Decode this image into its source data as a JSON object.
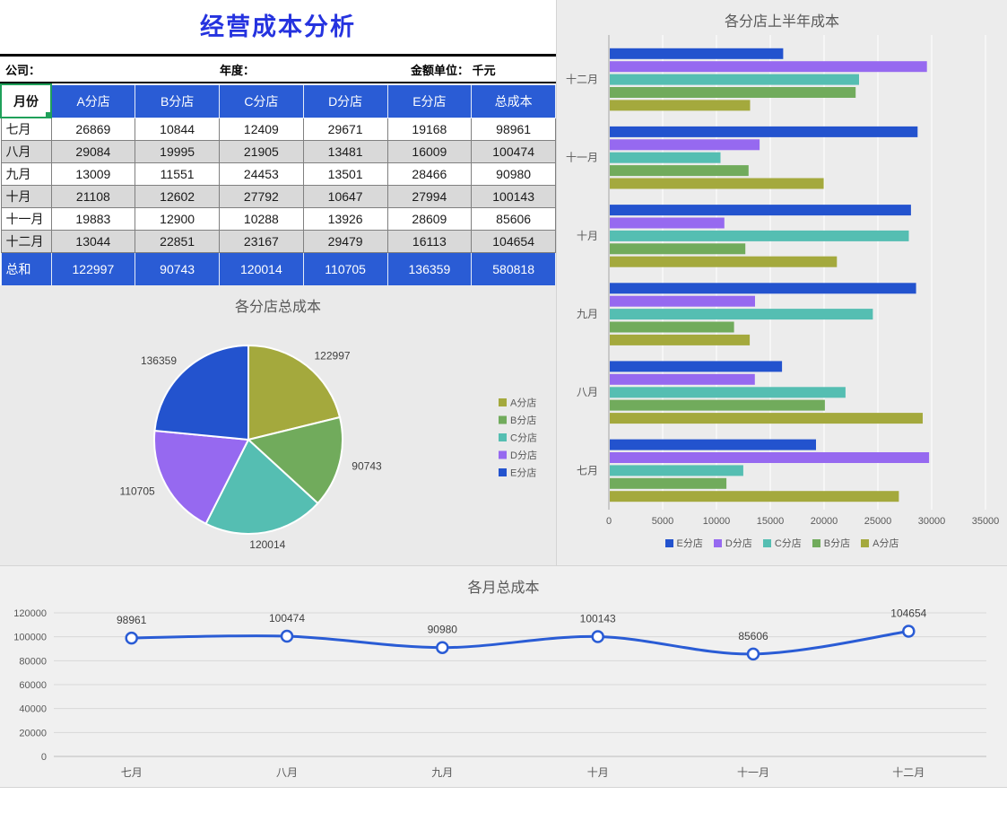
{
  "header": {
    "title": "经营成本分析",
    "company_label": "公司：",
    "year_label": "年度：",
    "unit_label": "金额单位： 千元"
  },
  "table": {
    "columns": [
      "月份",
      "A分店",
      "B分店",
      "C分店",
      "D分店",
      "E分店",
      "总成本"
    ],
    "rows": [
      {
        "label": "七月",
        "values": [
          26869,
          10844,
          12409,
          29671,
          19168,
          98961
        ]
      },
      {
        "label": "八月",
        "values": [
          29084,
          19995,
          21905,
          13481,
          16009,
          100474
        ]
      },
      {
        "label": "九月",
        "values": [
          13009,
          11551,
          24453,
          13501,
          28466,
          90980
        ]
      },
      {
        "label": "十月",
        "values": [
          21108,
          12602,
          27792,
          10647,
          27994,
          100143
        ]
      },
      {
        "label": "十一月",
        "values": [
          19883,
          12900,
          10288,
          13926,
          28609,
          85606
        ]
      },
      {
        "label": "十二月",
        "values": [
          13044,
          22851,
          23167,
          29479,
          16113,
          104654
        ]
      }
    ],
    "total": {
      "label": "总和",
      "values": [
        122997,
        90743,
        120014,
        110705,
        136359,
        580818
      ]
    }
  },
  "colors": {
    "title_blue": "#2533DF",
    "table_header_bg": "#2A5CD5",
    "row_alt_bg": "#D9D9D9",
    "selection_green": "#1FA05A",
    "axis_text": "#595959"
  },
  "chart_data": [
    {
      "type": "pie",
      "title": "各分店总成本",
      "labels": [
        "A分店",
        "B分店",
        "C分店",
        "D分店",
        "E分店"
      ],
      "values": [
        122997,
        90743,
        120014,
        110705,
        136359
      ],
      "colors": [
        "#A4A93D",
        "#71AB5C",
        "#55BEB2",
        "#9669F0",
        "#2353CE"
      ],
      "legend_position": "right",
      "data_labels": true
    },
    {
      "type": "bar",
      "orientation": "horizontal",
      "title": "各分店上半年成本",
      "categories": [
        "七月",
        "八月",
        "九月",
        "十月",
        "十一月",
        "十二月"
      ],
      "category_axis_order": "bottom-to-top",
      "series": [
        {
          "name": "E分店",
          "color": "#2353CE",
          "values": [
            19168,
            16009,
            28466,
            27994,
            28609,
            16113
          ]
        },
        {
          "name": "D分店",
          "color": "#9669F0",
          "values": [
            29671,
            13481,
            13501,
            10647,
            13926,
            29479
          ]
        },
        {
          "name": "C分店",
          "color": "#55BEB2",
          "values": [
            12409,
            21905,
            24453,
            27792,
            10288,
            23167
          ]
        },
        {
          "name": "B分店",
          "color": "#71AB5C",
          "values": [
            10844,
            19995,
            11551,
            12602,
            12900,
            22851
          ]
        },
        {
          "name": "A分店",
          "color": "#A4A93D",
          "values": [
            26869,
            29084,
            13009,
            21108,
            19883,
            13044
          ]
        }
      ],
      "xlim": [
        0,
        35000
      ],
      "xtick_step": 5000,
      "legend_position": "bottom",
      "grid": true
    },
    {
      "type": "line",
      "title": "各月总成本",
      "categories": [
        "七月",
        "八月",
        "九月",
        "十月",
        "十一月",
        "十二月"
      ],
      "values": [
        98961,
        100474,
        90980,
        100143,
        85606,
        104654
      ],
      "color": "#2A5CD5",
      "ylim": [
        0,
        120000
      ],
      "ytick_step": 20000,
      "data_labels": true,
      "grid": true
    }
  ]
}
